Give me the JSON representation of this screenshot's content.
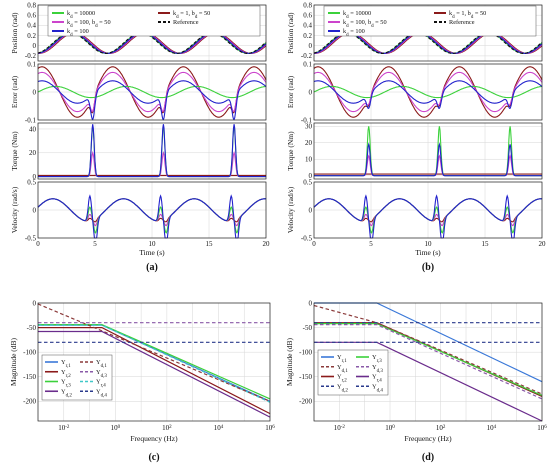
{
  "chart_data": [
    {
      "id": "a",
      "panel_label": "(a)",
      "type": "line",
      "xlabel": "Time (s)",
      "xlim": [
        0,
        20
      ],
      "xticks": [
        0,
        5,
        10,
        15,
        20
      ],
      "legend": {
        "placement": "top",
        "entries": [
          {
            "label": "k_d = 10000",
            "color": "#3bd13b",
            "dash": false
          },
          {
            "label": "k_d = 1, b_d = 50",
            "color": "#8b1a1a",
            "dash": false
          },
          {
            "label": "k_d = 100, b_d = 50",
            "color": "#cc44cc",
            "dash": false
          },
          {
            "label": "Reference",
            "color": "#111111",
            "dash": true
          },
          {
            "label": "k_d = 100",
            "color": "#2222cc",
            "dash": false
          }
        ]
      },
      "subplots": [
        {
          "ylabel": "Position (rad)",
          "ylim": [
            -0.3,
            0.8
          ],
          "yticks": [
            -0.2,
            0,
            0.2,
            0.4,
            0.6,
            0.8
          ],
          "signal": "position"
        },
        {
          "ylabel": "Error (rad)",
          "ylim": [
            -0.1,
            0.1
          ],
          "yticks": [
            -0.1,
            0,
            0.1
          ],
          "signal": "error"
        },
        {
          "ylabel": "Torque (Nm)",
          "ylim": [
            -2,
            45
          ],
          "yticks": [
            0,
            20,
            40
          ],
          "signal": "torque"
        },
        {
          "ylabel": "Velocity (rad/s)",
          "ylim": [
            -0.5,
            0.5
          ],
          "yticks": [
            -0.5,
            0,
            0.5
          ],
          "signal": "velocity"
        }
      ]
    },
    {
      "id": "b",
      "panel_label": "(b)",
      "type": "line",
      "xlabel": "Time (s)",
      "xlim": [
        0,
        20
      ],
      "xticks": [
        0,
        5,
        10,
        15,
        20
      ],
      "legend": {
        "placement": "top",
        "entries": [
          {
            "label": "k_d = 10000",
            "color": "#3bd13b",
            "dash": false
          },
          {
            "label": "k_d = 1, b_d = 50",
            "color": "#8b1a1a",
            "dash": false
          },
          {
            "label": "k_d = 100, b_d = 50",
            "color": "#cc44cc",
            "dash": false
          },
          {
            "label": "Reference",
            "color": "#111111",
            "dash": true
          },
          {
            "label": "k_d = 100",
            "color": "#2222cc",
            "dash": false
          }
        ]
      },
      "subplots": [
        {
          "ylabel": "Position (rad)",
          "ylim": [
            -0.3,
            0.8
          ],
          "yticks": [
            -0.2,
            0,
            0.2,
            0.4,
            0.6,
            0.8
          ],
          "signal": "position"
        },
        {
          "ylabel": "Error (rad)",
          "ylim": [
            -0.1,
            0.1
          ],
          "yticks": [
            -0.1,
            0,
            0.1
          ],
          "signal": "error"
        },
        {
          "ylabel": "Torque (Nm)",
          "ylim": [
            -2,
            32
          ],
          "yticks": [
            0,
            10,
            20,
            30
          ],
          "signal": "torque"
        },
        {
          "ylabel": "Velocity (rad/s)",
          "ylim": [
            -0.5,
            0.5
          ],
          "yticks": [
            -0.5,
            0,
            0.5
          ],
          "signal": "velocity"
        }
      ]
    },
    {
      "id": "c",
      "panel_label": "(c)",
      "type": "line",
      "xscale": "log",
      "xlabel": "Frequency (Hz)",
      "ylabel": "Magnitude (dB)",
      "xlim": [
        0.001,
        1000000
      ],
      "ylim": [
        -240,
        0
      ],
      "yticks": [
        0,
        -50,
        -100,
        -150,
        -200
      ],
      "xticks": [
        0.01,
        1,
        100,
        10000,
        1000000
      ],
      "legend": {
        "placement": "bottom-left",
        "entries": [
          {
            "label": "Y_r,1",
            "color": "#3a78d8",
            "dash": false
          },
          {
            "label": "Y_r,2",
            "color": "#8b1a1a",
            "dash": false
          },
          {
            "label": "Y_r,3",
            "color": "#3bd13b",
            "dash": false
          },
          {
            "label": "Y_d,2",
            "color": "#6a2c8c",
            "dash": false
          },
          {
            "label": "Y_d,1",
            "color": "#8b3a3a",
            "dash": true
          },
          {
            "label": "Y_d,3",
            "color": "#8a5aa8",
            "dash": true
          },
          {
            "label": "Y_r,4",
            "color": "#40c8c8",
            "dash": true
          },
          {
            "label": "Y_d,4",
            "color": "#2a3a8c",
            "dash": true
          }
        ]
      },
      "series": [
        {
          "name": "Y_r,1",
          "x": [
            0.001,
            0.3,
            1000000
          ],
          "y": [
            -45,
            -45,
            -200
          ]
        },
        {
          "name": "Y_r,2",
          "x": [
            0.001,
            0.3,
            1000000
          ],
          "y": [
            -50,
            -50,
            -225
          ]
        },
        {
          "name": "Y_r,3",
          "x": [
            0.001,
            0.3,
            1000000
          ],
          "y": [
            -44,
            -44,
            -195
          ]
        },
        {
          "name": "Y_r,4",
          "x": [
            0.001,
            0.3,
            1000000
          ],
          "y": [
            -45,
            -45,
            -202
          ]
        },
        {
          "name": "Y_d,1",
          "x": [
            0.001,
            1000000
          ],
          "y": [
            -2,
            -200
          ]
        },
        {
          "name": "Y_d,2",
          "x": [
            0.001,
            0.3,
            1000000
          ],
          "y": [
            -58,
            -58,
            -232
          ]
        },
        {
          "name": "Y_d,3",
          "x": [
            0.001,
            1000000
          ],
          "y": [
            -40,
            -40
          ]
        },
        {
          "name": "Y_d,4",
          "x": [
            0.001,
            1000000
          ],
          "y": [
            -80,
            -80
          ]
        }
      ]
    },
    {
      "id": "d",
      "panel_label": "(d)",
      "type": "line",
      "xscale": "log",
      "xlabel": "Frequency (Hz)",
      "ylabel": "Magnitude (dB)",
      "xlim": [
        0.001,
        1000000
      ],
      "ylim": [
        -240,
        0
      ],
      "yticks": [
        0,
        -50,
        -100,
        -150,
        -200
      ],
      "xticks": [
        0.01,
        1,
        100,
        10000,
        1000000
      ],
      "legend": {
        "placement": "bottom-left",
        "entries": [
          {
            "label": "Y_r,1",
            "color": "#3a78d8",
            "dash": false
          },
          {
            "label": "Y_d,1",
            "color": "#8b3a3a",
            "dash": true
          },
          {
            "label": "Y_r,2",
            "color": "#8b1a1a",
            "dash": false
          },
          {
            "label": "Y_d,2",
            "color": "#2a3a8c",
            "dash": true
          },
          {
            "label": "Y_r,3",
            "color": "#3bd13b",
            "dash": false
          },
          {
            "label": "Y_d,3",
            "color": "#8a5aa8",
            "dash": true
          },
          {
            "label": "Y_r,4",
            "color": "#6a2c8c",
            "dash": false
          },
          {
            "label": "Y_d,4",
            "color": "#2a3a8c",
            "dash": true
          }
        ]
      },
      "series": [
        {
          "name": "Y_r,1",
          "x": [
            0.001,
            0.3,
            1000000
          ],
          "y": [
            0,
            0,
            -160
          ]
        },
        {
          "name": "Y_r,2",
          "x": [
            0.001,
            0.3,
            1000000
          ],
          "y": [
            -40,
            -40,
            -190
          ]
        },
        {
          "name": "Y_r,3",
          "x": [
            0.001,
            0.3,
            1000000
          ],
          "y": [
            -42,
            -42,
            -188
          ]
        },
        {
          "name": "Y_r,4",
          "x": [
            0.001,
            0.3,
            1000000
          ],
          "y": [
            -80,
            -80,
            -240
          ]
        },
        {
          "name": "Y_d,1",
          "x": [
            0.001,
            0.3,
            1000000
          ],
          "y": [
            -5,
            -40,
            -185
          ]
        },
        {
          "name": "Y_d,2",
          "x": [
            0.001,
            1000000
          ],
          "y": [
            -40,
            -40
          ]
        },
        {
          "name": "Y_d,3",
          "x": [
            0.001,
            0.3,
            1000000
          ],
          "y": [
            -44,
            -44,
            -195
          ]
        },
        {
          "name": "Y_d,4",
          "x": [
            0.001,
            1000000
          ],
          "y": [
            -80,
            -80
          ]
        }
      ]
    }
  ]
}
